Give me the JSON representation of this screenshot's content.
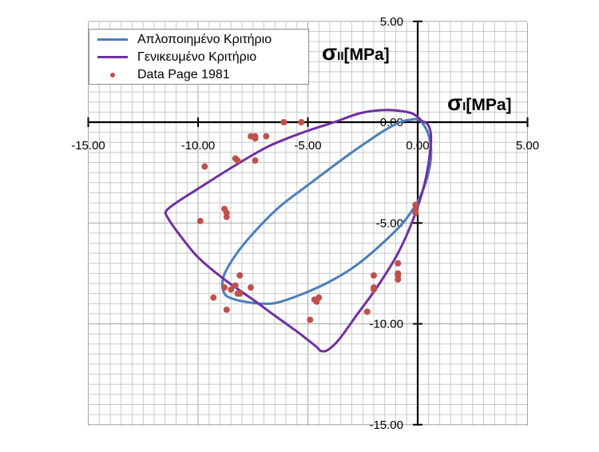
{
  "chart_data": {
    "type": "scatter",
    "xlim": [
      -15,
      5
    ],
    "ylim": [
      -15,
      5
    ],
    "major_ticks": [
      -15,
      -10,
      -5,
      0,
      5
    ],
    "minor_step": 0.5,
    "grid": true,
    "x_tick_labels": [
      "-15.00",
      "-10.00",
      "-5.00",
      "0.00",
      "5.00"
    ],
    "y_tick_labels": [
      "5.00",
      "0.00",
      "-5.00",
      "-10.00",
      "-15.00"
    ],
    "axis_titles": {
      "y": {
        "main": "σ",
        "sub": "II",
        "unit": "[MPa]"
      },
      "x": {
        "main": "σ",
        "sub": "I",
        "unit": "[MPa]"
      }
    },
    "legend_position": "top-left",
    "colors": {
      "blue": "#4a7ebb",
      "purple": "#7030a0",
      "points": "#c0504d"
    },
    "series": [
      {
        "name": "Απλοποιημένο Κριτήριο",
        "kind": "line",
        "x": [
          0.1,
          -0.15,
          -0.8,
          -1.5,
          -2.2,
          -3.0,
          -4.0,
          -5.1,
          -6.3,
          -7.4,
          -8.3,
          -8.85,
          -8.8,
          -8.3,
          -7.6,
          -7.0,
          -6.4,
          -5.2,
          -4.0,
          -2.8,
          -1.6,
          -0.6,
          0.15,
          0.55,
          0.6,
          0.45,
          0.25,
          0.1
        ],
        "y": [
          0.1,
          0.15,
          0.0,
          -0.4,
          -0.9,
          -1.5,
          -2.3,
          -3.2,
          -4.2,
          -5.4,
          -6.6,
          -7.7,
          -8.5,
          -8.8,
          -8.95,
          -9.0,
          -8.95,
          -8.5,
          -7.9,
          -7.1,
          -6.0,
          -4.9,
          -3.6,
          -2.2,
          -1.2,
          -0.5,
          -0.1,
          0.1
        ]
      },
      {
        "name": "Γενικευμένο Κριτήριο",
        "kind": "line",
        "x": [
          0.2,
          -0.3,
          -1.4,
          -2.6,
          -3.8,
          -5.2,
          -6.8,
          -8.4,
          -10.0,
          -11.0,
          -11.45,
          -11.4,
          -10.9,
          -10.0,
          -8.8,
          -7.5,
          -6.5,
          -5.6,
          -5.0,
          -4.6,
          -4.4,
          -4.1,
          -3.6,
          -2.8,
          -1.8,
          -0.9,
          -0.2,
          0.3,
          0.55,
          0.6,
          0.45,
          0.2
        ],
        "y": [
          0.05,
          0.45,
          0.6,
          0.45,
          0.0,
          -0.5,
          -1.2,
          -2.2,
          -3.3,
          -4.0,
          -4.4,
          -4.7,
          -5.5,
          -6.7,
          -7.8,
          -8.8,
          -9.6,
          -10.3,
          -10.8,
          -11.15,
          -11.35,
          -11.3,
          -10.8,
          -9.6,
          -8.1,
          -6.5,
          -4.8,
          -3.1,
          -1.6,
          -0.6,
          -0.1,
          0.05
        ]
      },
      {
        "name": "Data Page 1981",
        "kind": "points",
        "x": [
          -6.1,
          -5.3,
          -7.6,
          -7.4,
          -7.4,
          -6.9,
          -8.3,
          -8.2,
          -7.4,
          -9.7,
          -8.8,
          -8.7,
          -8.7,
          -9.9,
          -8.1,
          -8.8,
          -8.5,
          -8.3,
          -8.2,
          -8.1,
          -7.6,
          -9.3,
          -8.7,
          -4.7,
          -4.6,
          -4.5,
          -4.9,
          -2.3,
          -2.0,
          -2.0,
          -2.0,
          -0.1,
          -0.1,
          -0.1,
          -0.9,
          -0.9,
          -0.9,
          -0.9
        ],
        "y": [
          0.0,
          0.0,
          -0.7,
          -0.7,
          -0.8,
          -0.7,
          -1.8,
          -1.9,
          -1.9,
          -2.2,
          -4.3,
          -4.5,
          -4.7,
          -4.9,
          -7.6,
          -8.2,
          -8.3,
          -8.1,
          -8.5,
          -8.5,
          -8.2,
          -8.7,
          -9.3,
          -8.8,
          -8.9,
          -8.7,
          -9.8,
          -9.4,
          -7.6,
          -8.2,
          -8.3,
          -4.1,
          -4.4,
          -4.5,
          -7.0,
          -7.5,
          -7.6,
          -7.8
        ]
      }
    ]
  }
}
